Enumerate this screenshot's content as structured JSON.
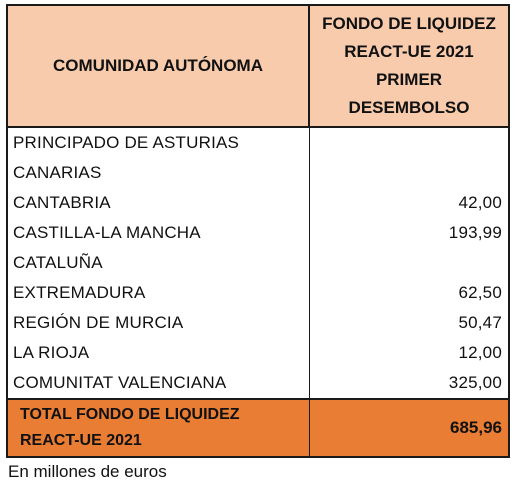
{
  "header": {
    "col1": "COMUNIDAD AUTÓNOMA",
    "col2_lines": [
      "FONDO DE LIQUIDEZ",
      "REACT-UE 2021",
      "PRIMER",
      "DESEMBOLSO"
    ]
  },
  "rows": [
    {
      "name": "PRINCIPADO DE ASTURIAS",
      "value": ""
    },
    {
      "name": "CANARIAS",
      "value": ""
    },
    {
      "name": "CANTABRIA",
      "value": "42,00"
    },
    {
      "name": "CASTILLA-LA MANCHA",
      "value": "193,99"
    },
    {
      "name": "CATALUÑA",
      "value": ""
    },
    {
      "name": "EXTREMADURA",
      "value": "62,50"
    },
    {
      "name": "REGIÓN DE MURCIA",
      "value": "50,47"
    },
    {
      "name": "LA RIOJA",
      "value": "12,00"
    },
    {
      "name": "COMUNITAT VALENCIANA",
      "value": "325,00"
    }
  ],
  "total": {
    "label_lines": [
      "TOTAL FONDO DE LIQUIDEZ",
      "REACT-UE 2021"
    ],
    "value": "685,96"
  },
  "note": "En millones de euros",
  "colors": {
    "header_bg": "#f8cbad",
    "total_bg": "#e87d33"
  }
}
